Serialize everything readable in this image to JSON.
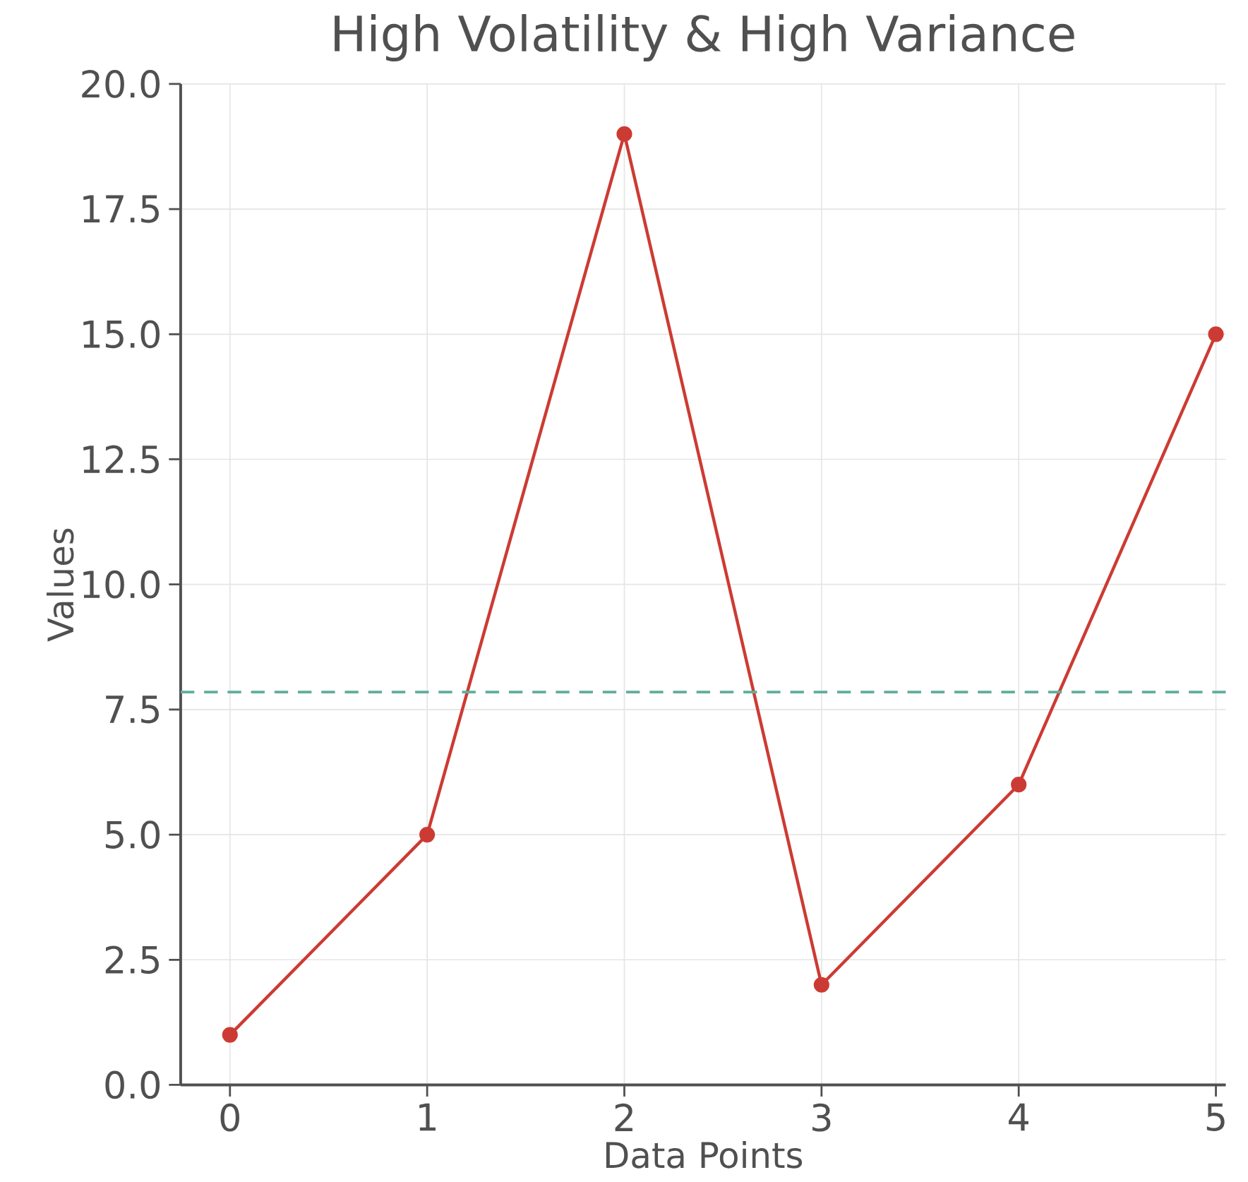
{
  "chart_data": {
    "type": "line",
    "title": "High Volatility & High Variance",
    "xlabel": "Data Points",
    "ylabel": "Values",
    "x": [
      0,
      1,
      2,
      3,
      4,
      5
    ],
    "series": [
      {
        "color": "#cc3b33",
        "values": [
          1,
          5,
          19,
          2,
          6,
          15
        ]
      }
    ],
    "xlim": [
      -0.25,
      5.05
    ],
    "ylim": [
      0,
      20
    ],
    "xticks": [
      0,
      1,
      2,
      3,
      4,
      5
    ],
    "yticks": [
      {
        "value": 0,
        "label": "0.0"
      },
      {
        "value": 2.5,
        "label": "2.5"
      },
      {
        "value": 5,
        "label": "5.0"
      },
      {
        "value": 7.5,
        "label": "7.5"
      },
      {
        "value": 10,
        "label": "10.0"
      },
      {
        "value": 12.5,
        "label": "12.5"
      },
      {
        "value": 15,
        "label": "15.0"
      },
      {
        "value": 17.5,
        "label": "17.5"
      },
      {
        "value": 20,
        "label": "20.0"
      }
    ],
    "ref_lines": [
      {
        "axis": "y",
        "value": 7.85,
        "color": "#5fae9c",
        "line_style": "dashed"
      }
    ],
    "grid": true,
    "marker": "circle",
    "line_style": "solid"
  }
}
